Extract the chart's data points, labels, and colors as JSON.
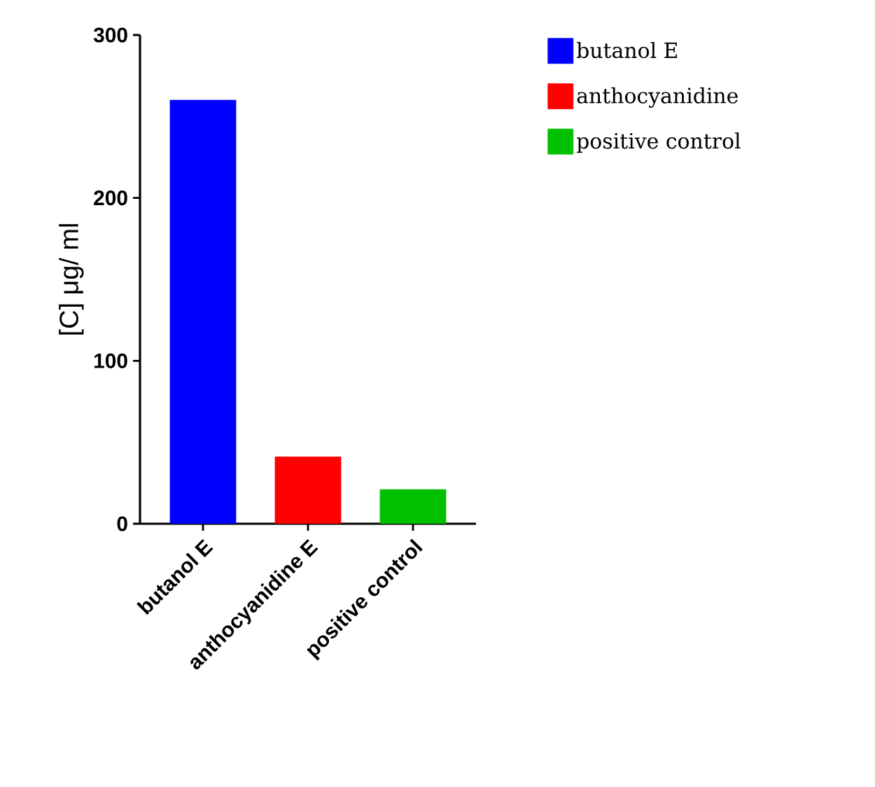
{
  "chart_data": {
    "type": "bar",
    "ylabel": "[C] μg/ ml",
    "categories": [
      "butanol E",
      "anthocyanidine E",
      "positive control"
    ],
    "series": [
      {
        "name": "butanol E",
        "color": "#0000ff",
        "values": [
          260,
          null,
          null
        ]
      },
      {
        "name": "anthocyanidine",
        "color": "#ff0000",
        "values": [
          null,
          41,
          null
        ]
      },
      {
        "name": "positive control",
        "color": "#00c000",
        "values": [
          null,
          null,
          21
        ]
      }
    ],
    "ylim": [
      0,
      300
    ],
    "yticks": [
      0,
      100,
      200,
      300
    ],
    "legend": "right",
    "grid": false
  }
}
